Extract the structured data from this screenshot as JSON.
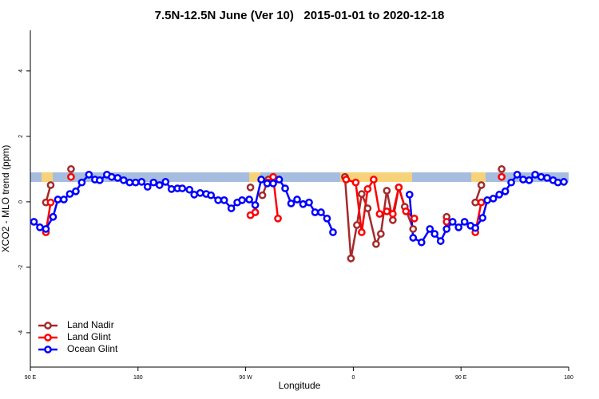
{
  "chart_data": {
    "type": "line",
    "title": "7.5N-12.5N June (Ver 10)   2015-01-01 to 2020-12-18",
    "x_label": "Longitude",
    "y_label": "XCO2 - MLO trend (ppm)",
    "xlim": [
      90,
      540
    ],
    "ylim": [
      -5.05,
      5.24
    ],
    "xticks": [
      {
        "value": 90,
        "label": "90 E"
      },
      180,
      {
        "value": 270,
        "label": "90 W"
      },
      {
        "value": 360,
        "label": "0"
      },
      {
        "value": 450,
        "label": "90 E"
      },
      {
        "value": 540,
        "label": "180"
      }
    ],
    "yticks": [
      -4,
      -2,
      0,
      2,
      4
    ],
    "legend": "bottom-left",
    "series": [
      {
        "name": "Land Nadir",
        "color": "#a52a2a",
        "x": [
          103,
          107,
          null,
          124,
          null,
          274,
          null,
          284,
          289,
          null,
          353,
          358,
          363,
          367,
          372,
          379,
          383,
          388,
          393,
          398,
          403,
          410,
          null,
          438,
          null,
          462,
          467,
          null,
          484
        ],
        "values": [
          -0.02,
          0.51,
          null,
          1.0,
          null,
          0.44,
          null,
          0.2,
          0.68,
          null,
          0.76,
          -1.73,
          -0.71,
          0.24,
          -0.2,
          -1.29,
          -0.98,
          0.34,
          -0.56,
          0.44,
          -0.15,
          -0.83,
          null,
          -0.46,
          null,
          -0.02,
          0.51,
          null,
          1.0
        ]
      },
      {
        "name": "Land Glint",
        "color": "#ff0000",
        "x": [
          103,
          107,
          null,
          124,
          null,
          274,
          278,
          null,
          289,
          293,
          297,
          null,
          354,
          362,
          367,
          372,
          377,
          382,
          388,
          393,
          398,
          404,
          411,
          null,
          438,
          null,
          462,
          467,
          null,
          484
        ],
        "values": [
          -0.93,
          -0.02,
          null,
          0.76,
          null,
          -0.41,
          -0.32,
          null,
          0.59,
          0.76,
          -0.51,
          null,
          0.68,
          0.59,
          -0.93,
          0.39,
          0.68,
          -0.37,
          -0.29,
          -0.37,
          0.44,
          -0.29,
          -0.51,
          null,
          -0.61,
          null,
          -0.93,
          -0.02,
          null,
          0.76
        ]
      },
      {
        "name": "Ocean Glint",
        "color": "#0000ff",
        "x": [
          93,
          98,
          103,
          109,
          113,
          118,
          123,
          128,
          133,
          139,
          144,
          148,
          154,
          158,
          163,
          168,
          173,
          178,
          183,
          188,
          193,
          198,
          203,
          208,
          213,
          217,
          223,
          227,
          232,
          237,
          241,
          247,
          252,
          258,
          263,
          267,
          273,
          278,
          283,
          288,
          293,
          298,
          303,
          308,
          313,
          318,
          323,
          328,
          333,
          338,
          343,
          null,
          407,
          410,
          417,
          424,
          428,
          433,
          438,
          443,
          448,
          453,
          458,
          462,
          468,
          472,
          477,
          482,
          487,
          492,
          497,
          502,
          507,
          512,
          517,
          522,
          527,
          531,
          536
        ],
        "values": [
          -0.61,
          -0.78,
          -0.83,
          -0.46,
          0.07,
          0.07,
          0.24,
          0.32,
          0.59,
          0.83,
          0.68,
          0.66,
          0.83,
          0.76,
          0.73,
          0.66,
          0.59,
          0.59,
          0.61,
          0.46,
          0.59,
          0.51,
          0.61,
          0.39,
          0.41,
          0.41,
          0.37,
          0.22,
          0.27,
          0.24,
          0.2,
          0.05,
          0.05,
          -0.2,
          -0.02,
          0.05,
          0.07,
          -0.1,
          0.68,
          0.56,
          0.56,
          0.68,
          0.41,
          -0.05,
          0.07,
          -0.07,
          -0.02,
          -0.32,
          -0.32,
          -0.51,
          -0.93,
          null,
          0.22,
          -1.1,
          -1.24,
          -0.83,
          -0.98,
          -1.2,
          -0.83,
          -0.61,
          -0.78,
          -0.61,
          -0.73,
          -0.8,
          -0.49,
          0.05,
          0.1,
          0.22,
          0.32,
          0.59,
          0.83,
          0.68,
          0.66,
          0.83,
          0.76,
          0.73,
          0.66,
          0.59,
          0.61
        ]
      }
    ]
  }
}
